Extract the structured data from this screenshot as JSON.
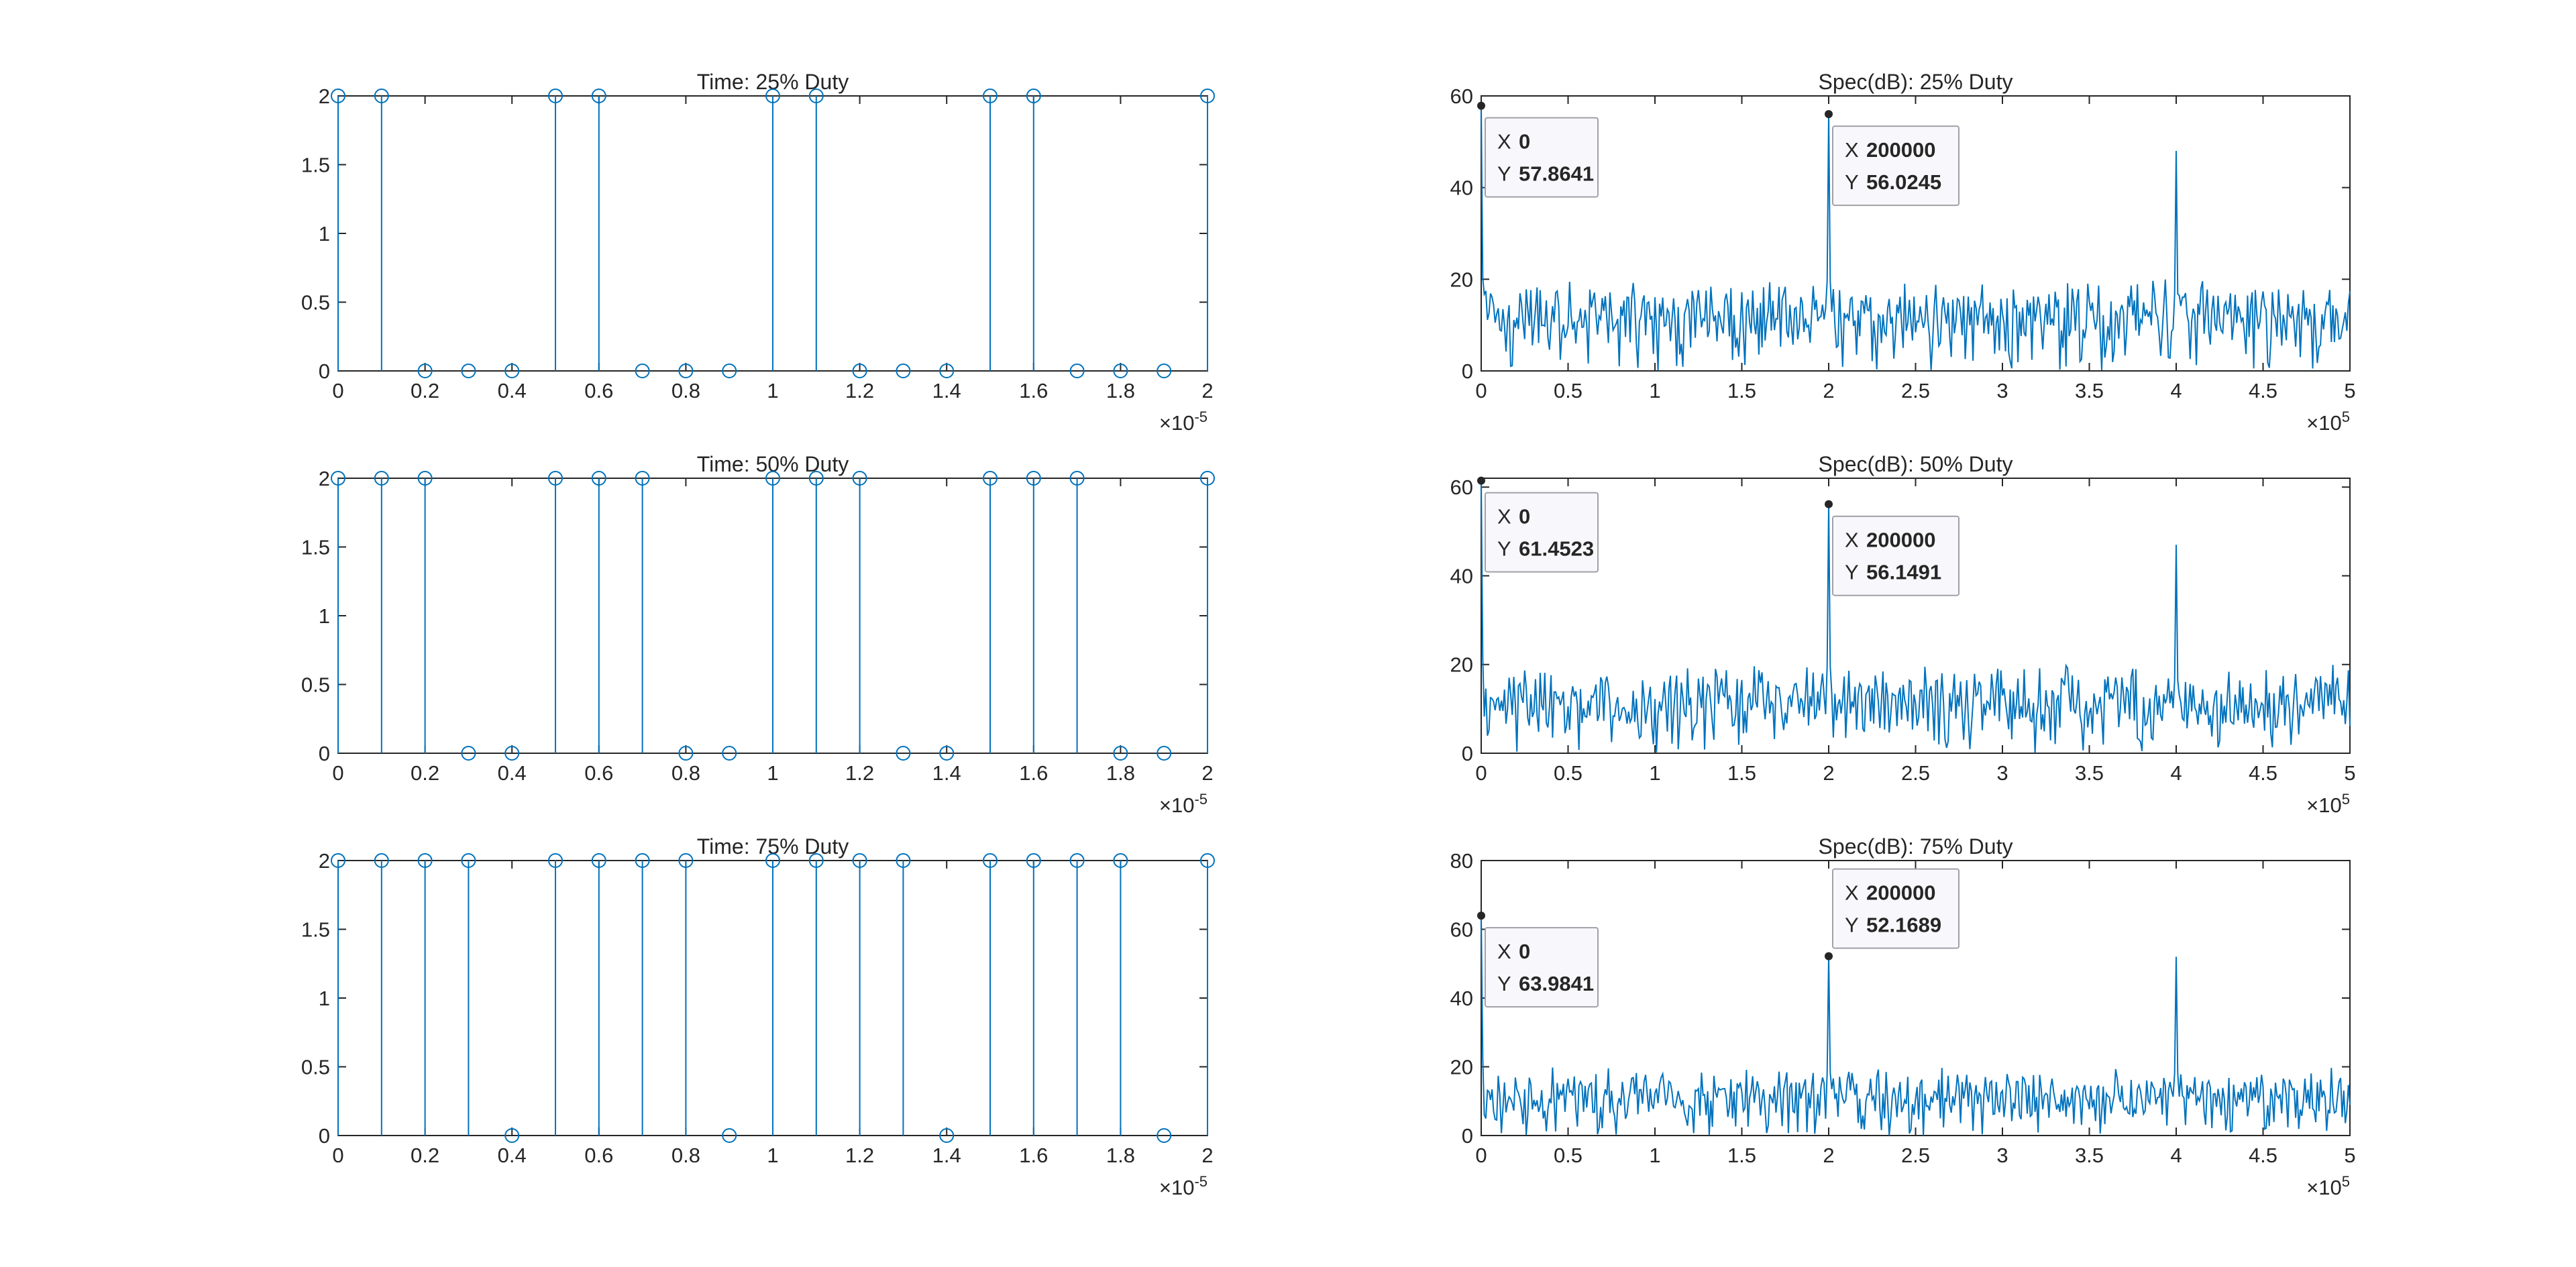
{
  "figure": {
    "background": "#ffffff",
    "series_color": "#0072bd",
    "datatip_value_color": "#0095f9"
  },
  "chart_data": [
    {
      "type": "stem",
      "title": "Time: 25% Duty",
      "x_start": 0,
      "x_step": 1e-06,
      "values": [
        2,
        2,
        0,
        0,
        0,
        2,
        2,
        0,
        0,
        0,
        2,
        2,
        0,
        0,
        0,
        2,
        2,
        0,
        0,
        0,
        2
      ],
      "xlim": [
        0,
        2e-05
      ],
      "ylim": [
        0,
        2
      ],
      "xticks": [
        0,
        0.2,
        0.4,
        0.6,
        0.8,
        1,
        1.2,
        1.4,
        1.6,
        1.8,
        2
      ],
      "xtick_labels": [
        "0",
        "0.2",
        "0.4",
        "0.6",
        "0.8",
        "1",
        "1.2",
        "1.4",
        "1.6",
        "1.8",
        "2"
      ],
      "x_scale": 1e-05,
      "yticks": [
        0,
        0.5,
        1,
        1.5,
        2
      ],
      "ytick_labels": [
        "0",
        "0.5",
        "1",
        "1.5",
        "2"
      ],
      "x_exponent": {
        "base": "×10",
        "power": "-5"
      }
    },
    {
      "type": "line",
      "title": "Spec(dB): 25% Duty",
      "xlim": [
        0,
        500000
      ],
      "ylim": [
        0,
        60
      ],
      "xticks": [
        0,
        0.5,
        1,
        1.5,
        2,
        2.5,
        3,
        3.5,
        4,
        4.5,
        5
      ],
      "xtick_labels": [
        "0",
        "0.5",
        "1",
        "1.5",
        "2",
        "2.5",
        "3",
        "3.5",
        "4",
        "4.5",
        "5"
      ],
      "x_scale": 100000,
      "yticks": [
        0,
        20,
        40,
        60
      ],
      "ytick_labels": [
        "0",
        "20",
        "40",
        "60"
      ],
      "x_exponent": {
        "base": "×10",
        "power": "5"
      },
      "peaks": [
        {
          "x": 0,
          "y": 57.8641
        },
        {
          "x": 200000,
          "y": 56.0245
        },
        {
          "x": 400000,
          "y": 48
        }
      ],
      "noise_floor_range": [
        0,
        20
      ],
      "datatips": [
        {
          "x": 0,
          "y": 57.8641,
          "x_label": "X",
          "y_label": "Y",
          "x_text": "0",
          "y_text": "57.8641",
          "placement": "below-right"
        },
        {
          "x": 200000,
          "y": 56.0245,
          "x_label": "X",
          "y_label": "Y",
          "x_text": "200000",
          "y_text": "56.0245",
          "placement": "below-right"
        }
      ]
    },
    {
      "type": "stem",
      "title": "Time: 50% Duty",
      "x_start": 0,
      "x_step": 1e-06,
      "values": [
        2,
        2,
        2,
        0,
        0,
        2,
        2,
        2,
        0,
        0,
        2,
        2,
        2,
        0,
        0,
        2,
        2,
        2,
        0,
        0,
        2
      ],
      "xlim": [
        0,
        2e-05
      ],
      "ylim": [
        0,
        2
      ],
      "xticks": [
        0,
        0.2,
        0.4,
        0.6,
        0.8,
        1,
        1.2,
        1.4,
        1.6,
        1.8,
        2
      ],
      "xtick_labels": [
        "0",
        "0.2",
        "0.4",
        "0.6",
        "0.8",
        "1",
        "1.2",
        "1.4",
        "1.6",
        "1.8",
        "2"
      ],
      "x_scale": 1e-05,
      "yticks": [
        0,
        0.5,
        1,
        1.5,
        2
      ],
      "ytick_labels": [
        "0",
        "0.5",
        "1",
        "1.5",
        "2"
      ],
      "x_exponent": {
        "base": "×10",
        "power": "-5"
      }
    },
    {
      "type": "line",
      "title": "Spec(dB): 50% Duty",
      "xlim": [
        0,
        500000
      ],
      "ylim": [
        0,
        62
      ],
      "xticks": [
        0,
        0.5,
        1,
        1.5,
        2,
        2.5,
        3,
        3.5,
        4,
        4.5,
        5
      ],
      "xtick_labels": [
        "0",
        "0.5",
        "1",
        "1.5",
        "2",
        "2.5",
        "3",
        "3.5",
        "4",
        "4.5",
        "5"
      ],
      "x_scale": 100000,
      "yticks": [
        0,
        20,
        40,
        60
      ],
      "ytick_labels": [
        "0",
        "20",
        "40",
        "60"
      ],
      "x_exponent": {
        "base": "×10",
        "power": "5"
      },
      "peaks": [
        {
          "x": 0,
          "y": 61.4523
        },
        {
          "x": 200000,
          "y": 56.1491
        },
        {
          "x": 400000,
          "y": 47
        }
      ],
      "noise_floor_range": [
        0,
        20
      ],
      "datatips": [
        {
          "x": 0,
          "y": 61.4523,
          "x_label": "X",
          "y_label": "Y",
          "x_text": "0",
          "y_text": "61.4523",
          "placement": "below-right"
        },
        {
          "x": 200000,
          "y": 56.1491,
          "x_label": "X",
          "y_label": "Y",
          "x_text": "200000",
          "y_text": "56.1491",
          "placement": "below-right"
        }
      ]
    },
    {
      "type": "stem",
      "title": "Time: 75% Duty",
      "x_start": 0,
      "x_step": 1e-06,
      "values": [
        2,
        2,
        2,
        2,
        0,
        2,
        2,
        2,
        2,
        0,
        2,
        2,
        2,
        2,
        0,
        2,
        2,
        2,
        2,
        0,
        2
      ],
      "xlim": [
        0,
        2e-05
      ],
      "ylim": [
        0,
        2
      ],
      "xticks": [
        0,
        0.2,
        0.4,
        0.6,
        0.8,
        1,
        1.2,
        1.4,
        1.6,
        1.8,
        2
      ],
      "xtick_labels": [
        "0",
        "0.2",
        "0.4",
        "0.6",
        "0.8",
        "1",
        "1.2",
        "1.4",
        "1.6",
        "1.8",
        "2"
      ],
      "x_scale": 1e-05,
      "yticks": [
        0,
        0.5,
        1,
        1.5,
        2
      ],
      "ytick_labels": [
        "0",
        "0.5",
        "1",
        "1.5",
        "2"
      ],
      "x_exponent": {
        "base": "×10",
        "power": "-5"
      }
    },
    {
      "type": "line",
      "title": "Spec(dB): 75% Duty",
      "xlim": [
        0,
        500000
      ],
      "ylim": [
        0,
        80
      ],
      "xticks": [
        0,
        0.5,
        1,
        1.5,
        2,
        2.5,
        3,
        3.5,
        4,
        4.5,
        5
      ],
      "xtick_labels": [
        "0",
        "0.5",
        "1",
        "1.5",
        "2",
        "2.5",
        "3",
        "3.5",
        "4",
        "4.5",
        "5"
      ],
      "x_scale": 100000,
      "yticks": [
        0,
        20,
        40,
        60,
        80
      ],
      "ytick_labels": [
        "0",
        "20",
        "40",
        "60",
        "80"
      ],
      "x_exponent": {
        "base": "×10",
        "power": "5"
      },
      "peaks": [
        {
          "x": 0,
          "y": 63.9841
        },
        {
          "x": 200000,
          "y": 52.1689
        },
        {
          "x": 400000,
          "y": 52
        }
      ],
      "noise_floor_range": [
        0,
        20
      ],
      "datatips": [
        {
          "x": 0,
          "y": 63.9841,
          "x_label": "X",
          "y_label": "Y",
          "x_text": "0",
          "y_text": "63.9841",
          "placement": "below-right"
        },
        {
          "x": 200000,
          "y": 52.1689,
          "x_label": "X",
          "y_label": "Y",
          "x_text": "200000",
          "y_text": "52.1689",
          "placement": "above-right"
        }
      ]
    }
  ]
}
